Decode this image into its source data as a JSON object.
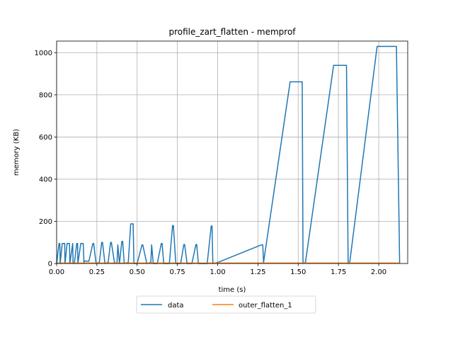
{
  "chart_data": {
    "type": "line",
    "title": "profile_zart_flatten - memprof",
    "xlabel": "time (s)",
    "ylabel": "memory (KB)",
    "xlim": [
      0,
      2.18
    ],
    "ylim": [
      0,
      1055
    ],
    "xticks": [
      0.0,
      0.25,
      0.5,
      0.75,
      1.0,
      1.25,
      1.5,
      1.75,
      2.0
    ],
    "xtick_labels": [
      "0.00",
      "0.25",
      "0.50",
      "0.75",
      "1.00",
      "1.25",
      "1.50",
      "1.75",
      "2.00"
    ],
    "yticks": [
      0,
      200,
      400,
      600,
      800,
      1000
    ],
    "ytick_labels": [
      "0",
      "200",
      "400",
      "600",
      "800",
      "1000"
    ],
    "grid": true,
    "legend_placement": "bottom-center",
    "series": [
      {
        "name": "data",
        "color": "#1f77b4",
        "x": [
          0.0,
          0.015,
          0.02,
          0.022,
          0.035,
          0.05,
          0.052,
          0.065,
          0.08,
          0.082,
          0.1,
          0.102,
          0.11,
          0.125,
          0.13,
          0.132,
          0.15,
          0.165,
          0.17,
          0.172,
          0.2,
          0.225,
          0.23,
          0.245,
          0.265,
          0.28,
          0.285,
          0.3,
          0.32,
          0.335,
          0.34,
          0.36,
          0.375,
          0.38,
          0.39,
          0.405,
          0.41,
          0.42,
          0.445,
          0.46,
          0.475,
          0.48,
          0.5,
          0.53,
          0.535,
          0.56,
          0.585,
          0.59,
          0.6,
          0.625,
          0.65,
          0.655,
          0.665,
          0.7,
          0.72,
          0.725,
          0.74,
          0.77,
          0.79,
          0.795,
          0.81,
          0.84,
          0.865,
          0.87,
          0.88,
          0.935,
          0.96,
          0.965,
          0.97,
          1.0,
          1.27,
          1.28,
          1.285,
          1.45,
          1.525,
          1.53,
          1.545,
          1.72,
          1.8,
          1.81,
          1.82,
          1.99,
          2.01,
          2.1,
          2.11,
          2.13
        ],
        "y": [
          0,
          95,
          95,
          0,
          95,
          95,
          0,
          95,
          95,
          0,
          95,
          0,
          0,
          95,
          95,
          0,
          95,
          95,
          0,
          12,
          10,
          95,
          95,
          0,
          5,
          100,
          100,
          0,
          5,
          100,
          100,
          0,
          5,
          88,
          0,
          105,
          105,
          0,
          5,
          188,
          188,
          0,
          0,
          88,
          88,
          0,
          5,
          88,
          0,
          0,
          95,
          95,
          0,
          0,
          180,
          180,
          0,
          0,
          90,
          90,
          0,
          0,
          90,
          90,
          0,
          0,
          178,
          178,
          0,
          5,
          88,
          88,
          5,
          862,
          862,
          0,
          5,
          940,
          940,
          0,
          5,
          1030,
          1030,
          1030,
          1030,
          0
        ]
      },
      {
        "name": "outer_flatten_1",
        "color": "#ff7f0e",
        "x": [
          0.0,
          2.13
        ],
        "y": [
          2,
          2
        ]
      }
    ]
  }
}
